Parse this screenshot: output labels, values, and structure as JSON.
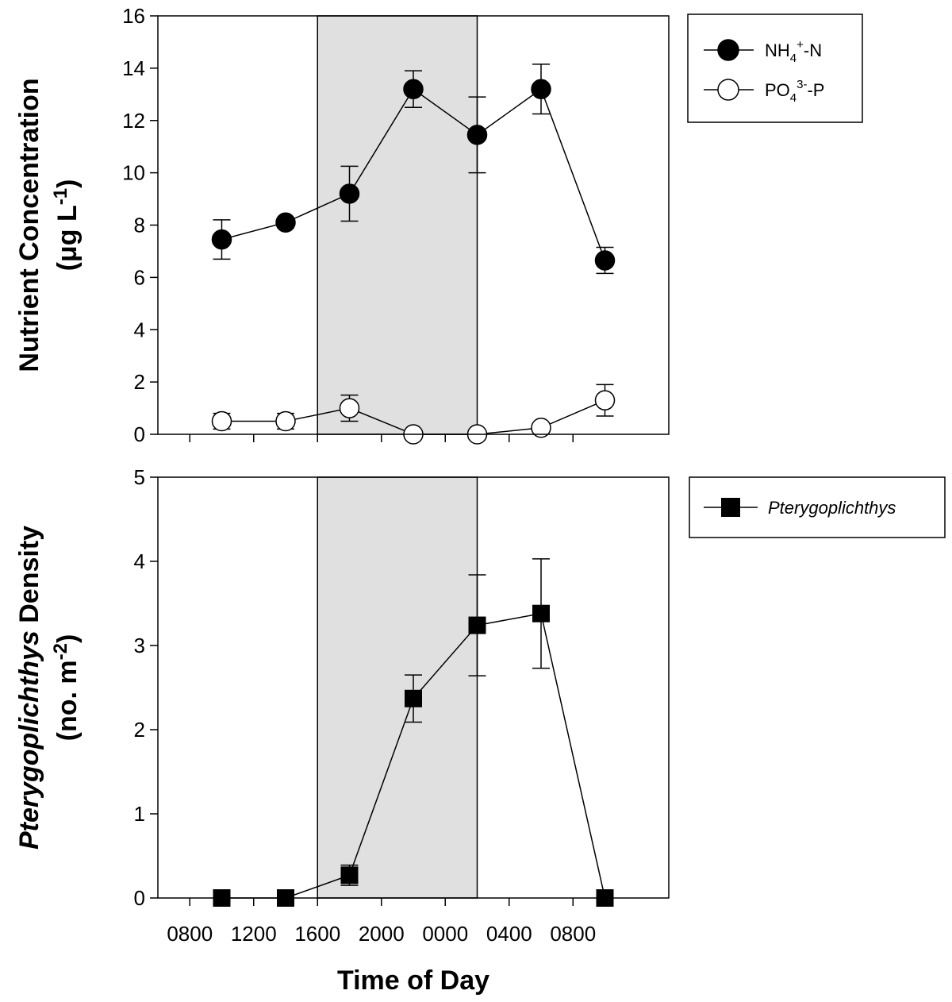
{
  "figure": {
    "xlabel": "Time of Day",
    "x_tick_labels": [
      "0800",
      "1200",
      "1600",
      "2000",
      "0000",
      "0400",
      "0800"
    ],
    "night_shading_hours": [
      18,
      28
    ],
    "shade_color": "#e0e0e0"
  },
  "chart_data": [
    {
      "type": "line",
      "panel": "top",
      "ylabel_line1": "Nutrient Concentration",
      "ylabel_line2": "(μg L",
      "ylabel_sup": "-1",
      "ylabel_close": ")",
      "ylim": [
        0,
        16
      ],
      "y_ticks": [
        "0",
        "2",
        "4",
        "6",
        "8",
        "10",
        "12",
        "14",
        "16"
      ],
      "x_hours": [
        10,
        14,
        18,
        22,
        26,
        30,
        34
      ],
      "x_tick_labels": [
        "0800",
        "1200",
        "1600",
        "2000",
        "0000",
        "0400",
        "0800"
      ],
      "legend_position": "top-right",
      "series": [
        {
          "name": "NH4+-N",
          "legend": {
            "base": "NH",
            "sub": "4",
            "sup": "+",
            "rest": "-N"
          },
          "marker": "filled-circle",
          "x_hours": [
            12,
            16,
            20,
            24,
            28,
            32,
            36
          ],
          "values": [
            7.45,
            8.1,
            9.2,
            13.2,
            11.45,
            13.2,
            6.65
          ],
          "errors": [
            0.75,
            0.15,
            1.05,
            0.7,
            1.45,
            0.95,
            0.5
          ]
        },
        {
          "name": "PO43--P",
          "legend": {
            "base": "PO",
            "sub": "4",
            "sup": "3-",
            "rest": "-P"
          },
          "marker": "open-circle",
          "x_hours": [
            12,
            16,
            20,
            24,
            28,
            32,
            36
          ],
          "values": [
            0.5,
            0.5,
            1.0,
            0.0,
            0.0,
            0.25,
            1.3
          ],
          "errors": [
            0.3,
            0.3,
            0.5,
            0.05,
            0.05,
            0.1,
            0.6
          ]
        }
      ]
    },
    {
      "type": "line",
      "panel": "bottom",
      "ylabel_line1_italic": "Pterygoplichthys",
      "ylabel_line1_rest": " Density",
      "ylabel_line2": "(no. m",
      "ylabel_sup": "-2",
      "ylabel_close": ")",
      "ylim": [
        0,
        5
      ],
      "y_ticks": [
        "0",
        "1",
        "2",
        "3",
        "4",
        "5"
      ],
      "x_hours": [
        10,
        14,
        18,
        22,
        26,
        30,
        34
      ],
      "x_tick_labels": [
        "0800",
        "1200",
        "1600",
        "2000",
        "0000",
        "0400",
        "0800"
      ],
      "legend_position": "top-right",
      "series": [
        {
          "name": "Pterygoplichthys",
          "marker": "filled-square",
          "x_hours": [
            12,
            16,
            20,
            24,
            28,
            32,
            36
          ],
          "values": [
            0,
            0,
            0.27,
            2.37,
            3.24,
            3.38,
            0
          ],
          "errors": [
            0,
            0,
            0.12,
            0.28,
            0.6,
            0.65,
            0
          ]
        }
      ]
    }
  ]
}
